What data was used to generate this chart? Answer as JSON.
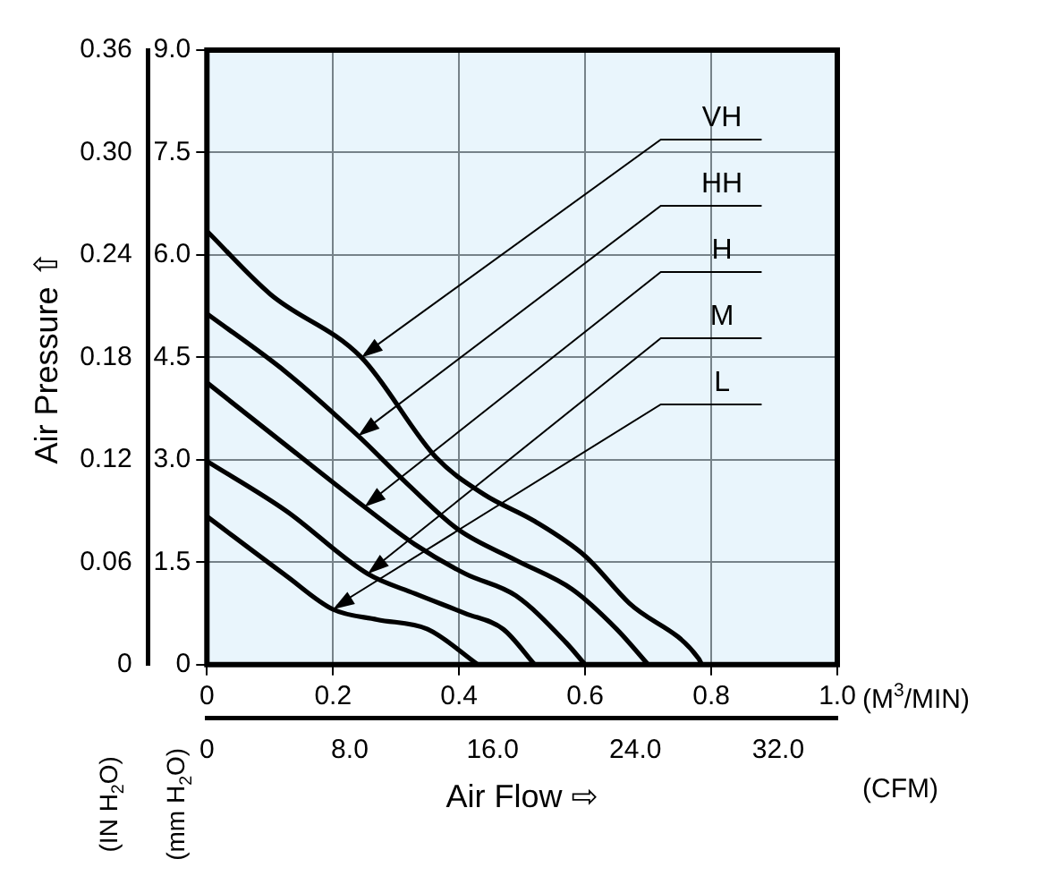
{
  "chart_data": {
    "type": "line",
    "xlabel": "Air Flow ⇨",
    "ylabel": "Air Pressure ⇧",
    "xlim": [
      0,
      1
    ],
    "xticks": [
      0,
      0.2,
      0.4,
      0.6,
      0.8,
      {
        "value": 1,
        "label": "1.0"
      }
    ],
    "x2lim": [
      0,
      35.31
    ],
    "x2ticks": [
      0,
      {
        "value": 8,
        "label": "8.0"
      },
      {
        "value": 16,
        "label": "16.0"
      },
      {
        "value": 24,
        "label": "24.0"
      },
      {
        "value": 32,
        "label": "32.0"
      }
    ],
    "y2lim": [
      0,
      9
    ],
    "y2ticks": [
      0,
      1.5,
      {
        "value": 3,
        "label": "3.0"
      },
      4.5,
      {
        "value": 6,
        "label": "6.0"
      },
      7.5,
      {
        "value": 9,
        "label": "9.0"
      }
    ],
    "ylim": [
      0,
      0.36
    ],
    "yticks": [
      0,
      0.06,
      0.12,
      0.18,
      0.24,
      {
        "value": 0.3,
        "label": "0.30"
      },
      0.36
    ],
    "grid": true,
    "marker": "none",
    "line_style": "solid",
    "annotations": [
      "(M$^{3}$/MIN)",
      "(CFM)",
      "(IN H$_{2}$O)",
      "(mm H$_{2}$O)"
    ],
    "series": [
      {
        "name": "VH",
        "color": "#000000",
        "axis": "y2",
        "x": [
          0,
          0.1,
          0.245,
          0.364,
          0.44,
          0.52,
          0.6,
          0.67,
          0.78,
          0.785
        ],
        "values": [
          6.35,
          5.43,
          4.5,
          3.03,
          2.49,
          2.1,
          1.59,
          0.9,
          0.09,
          0
        ]
      },
      {
        "name": "HH",
        "color": "#000000",
        "axis": "y2",
        "x": [
          0,
          0.126,
          0.24,
          0.32,
          0.4,
          0.49,
          0.58,
          0.65,
          0.7
        ],
        "values": [
          5.14,
          4.28,
          3.35,
          2.63,
          1.97,
          1.53,
          1.1,
          0.52,
          0
        ]
      },
      {
        "name": "H",
        "color": "#000000",
        "axis": "y2",
        "x": [
          0,
          0.126,
          0.25,
          0.33,
          0.41,
          0.49,
          0.57,
          0.6
        ],
        "values": [
          4.13,
          3.21,
          2.31,
          1.76,
          1.33,
          1.01,
          0.32,
          0
        ]
      },
      {
        "name": "M",
        "color": "#000000",
        "axis": "y2",
        "x": [
          0,
          0.126,
          0.255,
          0.33,
          0.41,
          0.47,
          0.52
        ],
        "values": [
          2.98,
          2.25,
          1.33,
          1.04,
          0.75,
          0.52,
          0
        ]
      },
      {
        "name": "L",
        "color": "#000000",
        "axis": "y2",
        "x": [
          0,
          0.126,
          0.2,
          0.27,
          0.35,
          0.43
        ],
        "values": [
          2.17,
          1.3,
          0.81,
          0.66,
          0.52,
          0
        ]
      }
    ]
  }
}
